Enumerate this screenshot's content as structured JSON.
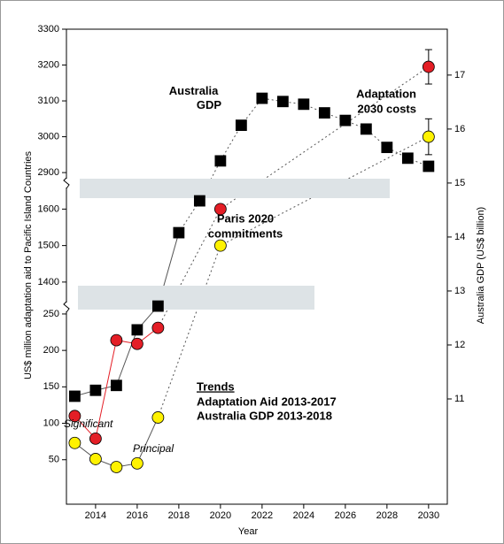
{
  "chart_data": {
    "type": "line",
    "x_label": "Year",
    "y_label": "US$ million adaptation aid to Pacific Island Countries",
    "y2_label": "Australia GDP (US$ billion)",
    "xlim": [
      2012.6,
      2030.9
    ],
    "xticks": [
      2014,
      2016,
      2018,
      2020,
      2022,
      2024,
      2026,
      2028,
      2030
    ],
    "ylim_segments": [
      [
        -11,
        256
      ],
      [
        1390,
        1630
      ],
      [
        2883,
        3300
      ]
    ],
    "yticks": [
      50,
      100,
      150,
      200,
      250,
      1400,
      1500,
      1600,
      2900,
      3000,
      3100,
      3200,
      3300
    ],
    "y2lim": [
      9.05,
      17.85
    ],
    "y2ticks": [
      11,
      12,
      13,
      14,
      15,
      16,
      17
    ],
    "series": [
      {
        "name": "Australia GDP",
        "axis": "y2",
        "color": "#000000",
        "marker": "square",
        "solid_until": 2018,
        "x": [
          2013,
          2014,
          2015,
          2016,
          2017,
          2018,
          2019,
          2020,
          2021,
          2022,
          2023,
          2024,
          2025,
          2026,
          2027,
          2028,
          2029,
          2030
        ],
        "values": [
          11.05,
          11.16,
          11.25,
          12.28,
          12.72,
          14.08,
          14.67,
          15.41,
          16.07,
          16.57,
          16.51,
          16.46,
          16.3,
          16.16,
          16.0,
          15.66,
          15.46,
          15.31
        ]
      },
      {
        "name": "Significant",
        "color": "#e41e26",
        "marker": "circle",
        "solid_until": 2017,
        "x": [
          2013,
          2014,
          2015,
          2016,
          2017,
          2020,
          2030
        ],
        "values": [
          110,
          79,
          214,
          209,
          231,
          1600,
          3195
        ],
        "errors": [
          null,
          null,
          null,
          null,
          null,
          null,
          48
        ]
      },
      {
        "name": "Principal",
        "color": "#fff200",
        "marker": "circle",
        "solid_until": 2017,
        "x": [
          2013,
          2014,
          2015,
          2016,
          2017,
          2020,
          2030
        ],
        "values": [
          73,
          51,
          40,
          45,
          108,
          1500,
          3000
        ],
        "errors": [
          null,
          null,
          null,
          null,
          null,
          null,
          50
        ]
      }
    ],
    "annotations": [
      {
        "lines": [
          "Adaptation",
          "2030 costs"
        ]
      },
      {
        "lines": [
          "Paris 2020",
          "commitments"
        ]
      }
    ],
    "trends": {
      "title": "Trends",
      "lines": [
        "Adaptation Aid 2013-2017",
        "Australia GDP 2013-2018"
      ]
    }
  }
}
